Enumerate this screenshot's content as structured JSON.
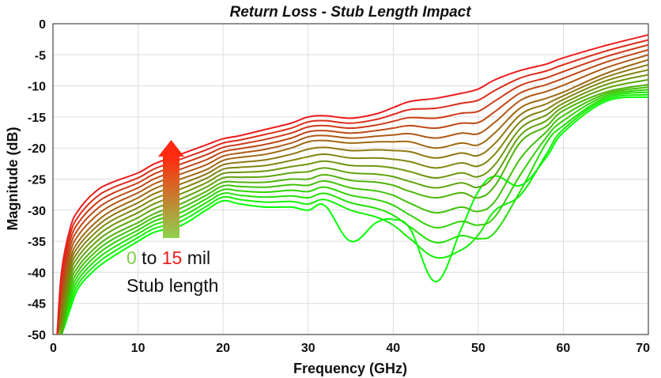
{
  "chart_data": {
    "type": "line",
    "title": "Return Loss - Stub Length Impact",
    "xlabel": "Frequency (GHz)",
    "ylabel": "Magnitude (dB)",
    "xlim": [
      0,
      70
    ],
    "ylim": [
      -50,
      0
    ],
    "xticks": [
      "0",
      "10",
      "20",
      "30",
      "40",
      "50",
      "60",
      "70"
    ],
    "yticks": [
      "0",
      "-5",
      "-10",
      "-15",
      "-20",
      "-25",
      "-30",
      "-35",
      "-40",
      "-45",
      "-50"
    ],
    "grid": true,
    "color_start": "#00ff00",
    "color_end": "#ee1c1c",
    "x": [
      0.5,
      1,
      2,
      3,
      5,
      7,
      10,
      12,
      15,
      18,
      20,
      22,
      25,
      28,
      30,
      32,
      35,
      38,
      40,
      42,
      45,
      48,
      50,
      52,
      55,
      58,
      60,
      65,
      70
    ],
    "series": [
      {
        "values": [
          -50,
          -40,
          -33,
          -30,
          -27,
          -25.5,
          -24,
          -22.5,
          -21,
          -19.5,
          -18.5,
          -18,
          -17,
          -16,
          -15,
          -14.8,
          -15.2,
          -14.5,
          -13.5,
          -12.5,
          -12,
          -11.2,
          -10.5,
          -9,
          -7.5,
          -6.5,
          -5.5,
          -3.5,
          -1.8
        ]
      },
      {
        "values": [
          -50,
          -41,
          -34,
          -31,
          -28,
          -26.4,
          -24.8,
          -23.3,
          -21.8,
          -20.3,
          -19.2,
          -18.7,
          -17.8,
          -16.8,
          -15.8,
          -15.6,
          -16,
          -15.4,
          -14.6,
          -13.8,
          -13.6,
          -12.8,
          -12.3,
          -10.7,
          -8.7,
          -7.6,
          -6.6,
          -4.4,
          -2.6
        ]
      },
      {
        "values": [
          -50,
          -42,
          -35,
          -32,
          -29,
          -27.3,
          -25.6,
          -24.1,
          -22.6,
          -21.1,
          -19.9,
          -19.4,
          -18.6,
          -17.6,
          -16.6,
          -16.4,
          -16.8,
          -16.3,
          -15.7,
          -15.1,
          -15.2,
          -14.4,
          -14.1,
          -12.4,
          -9.9,
          -8.7,
          -7.7,
          -5.3,
          -3.4
        ]
      },
      {
        "values": [
          -50,
          -43,
          -36,
          -33,
          -30,
          -28.2,
          -26.4,
          -24.9,
          -23.4,
          -21.9,
          -20.6,
          -20.1,
          -19.4,
          -18.4,
          -17.4,
          -17.2,
          -17.6,
          -17.2,
          -16.8,
          -16.4,
          -16.8,
          -16,
          -15.9,
          -14.1,
          -11.1,
          -9.8,
          -8.8,
          -6.2,
          -4.2
        ]
      },
      {
        "values": [
          -50,
          -44,
          -37,
          -34,
          -31,
          -29.1,
          -27.2,
          -25.7,
          -24.2,
          -22.7,
          -21.3,
          -20.8,
          -20.2,
          -19.2,
          -18.2,
          -18,
          -18.4,
          -18.1,
          -17.9,
          -17.7,
          -18.4,
          -17.6,
          -17.7,
          -15.8,
          -12.3,
          -10.9,
          -9.9,
          -7.1,
          -5
        ]
      },
      {
        "values": [
          -50,
          -45,
          -38,
          -35,
          -32,
          -30,
          -28,
          -26.5,
          -25,
          -23.5,
          -22,
          -21.5,
          -21,
          -20,
          -19,
          -18.8,
          -19.2,
          -19,
          -19,
          -19,
          -20,
          -19.2,
          -19.5,
          -17.5,
          -13.5,
          -12,
          -11,
          -8,
          -5.8
        ]
      },
      {
        "values": [
          -50,
          -46,
          -38.8,
          -35.8,
          -32.8,
          -30.8,
          -28.8,
          -27.3,
          -25.8,
          -24.2,
          -22.7,
          -22.3,
          -21.9,
          -21,
          -20.2,
          -19.9,
          -20.4,
          -20.3,
          -20.4,
          -20.6,
          -21.6,
          -20.8,
          -21.2,
          -19.2,
          -14.6,
          -12.9,
          -11.6,
          -8.6,
          -6.6
        ]
      },
      {
        "values": [
          -50,
          -47,
          -39.6,
          -36.6,
          -33.6,
          -31.6,
          -29.6,
          -28.1,
          -26.6,
          -24.9,
          -23.4,
          -23.1,
          -22.8,
          -22,
          -21.4,
          -21,
          -21.6,
          -21.6,
          -21.8,
          -22.2,
          -23.2,
          -22.4,
          -22.9,
          -20.9,
          -15.7,
          -13.8,
          -12.2,
          -9.2,
          -7.4
        ]
      },
      {
        "values": [
          -50,
          -48,
          -40.4,
          -37.4,
          -34.4,
          -32.4,
          -30.4,
          -28.9,
          -27.4,
          -25.6,
          -24.1,
          -23.9,
          -23.7,
          -23,
          -22.6,
          -22.1,
          -22.8,
          -22.9,
          -23.2,
          -23.8,
          -24.8,
          -24,
          -24.6,
          -22.6,
          -16.8,
          -14.7,
          -12.8,
          -9.8,
          -8.2
        ]
      },
      {
        "values": [
          -50,
          -49,
          -41.2,
          -38.2,
          -35.2,
          -33.2,
          -31.2,
          -29.7,
          -28.2,
          -26.3,
          -24.8,
          -24.7,
          -24.6,
          -24,
          -23.8,
          -23.2,
          -24,
          -24.2,
          -24.6,
          -25.4,
          -26.4,
          -25.6,
          -26.3,
          -24.3,
          -17.9,
          -15.6,
          -13.4,
          -10.4,
          -9
        ]
      },
      {
        "values": [
          -50,
          -50,
          -42,
          -39,
          -36,
          -34,
          -32,
          -30.5,
          -29,
          -27,
          -25.5,
          -25.5,
          -25.5,
          -25,
          -25,
          -24.3,
          -25.2,
          -25.5,
          -26,
          -27,
          -28,
          -27.2,
          -28,
          -26,
          -19,
          -16.5,
          -14,
          -11,
          -9.8
        ]
      },
      {
        "values": [
          -50,
          -50,
          -42.8,
          -39.7,
          -36.7,
          -34.7,
          -32.6,
          -31.1,
          -29.7,
          -27.6,
          -26.1,
          -26.2,
          -26.3,
          -25.9,
          -26,
          -25.3,
          -26.4,
          -26.9,
          -27.6,
          -28.9,
          -30.4,
          -29.5,
          -30.2,
          -28.5,
          -21.6,
          -17.4,
          -14.8,
          -11.3,
          -10.2
        ]
      },
      {
        "values": [
          -50,
          -50,
          -43.6,
          -40.4,
          -37.4,
          -35.4,
          -33.2,
          -31.7,
          -30.4,
          -28.2,
          -26.7,
          -26.9,
          -27.1,
          -26.8,
          -27,
          -26.3,
          -27.6,
          -28.3,
          -29.2,
          -30.8,
          -32.8,
          -31.8,
          -32.4,
          -31,
          -24.2,
          -18.3,
          -15.6,
          -11.6,
          -10.6
        ]
      },
      {
        "values": [
          -50,
          -50,
          -44.4,
          -41.1,
          -38.1,
          -36.1,
          -33.8,
          -32.3,
          -31.1,
          -28.8,
          -27.3,
          -27.6,
          -27.9,
          -27.7,
          -28,
          -27.3,
          -28.8,
          -29.7,
          -30.8,
          -32.7,
          -35.2,
          -34.1,
          -34.6,
          -33.5,
          -26.8,
          -19.2,
          -16.4,
          -11.9,
          -11
        ]
      },
      {
        "values": [
          -50,
          -50,
          -45.2,
          -41.8,
          -38.8,
          -36.8,
          -34.4,
          -32.9,
          -31.8,
          -29.4,
          -27.9,
          -28.3,
          -28.7,
          -28.6,
          -29,
          -28.3,
          -30,
          -31.1,
          -32.4,
          -34.6,
          -37.6,
          -36.4,
          -34,
          -30,
          -27.5,
          -21,
          -17,
          -12.2,
          -11.4
        ]
      },
      {
        "values": [
          -50,
          -50,
          -46,
          -42.5,
          -39.5,
          -37.5,
          -35,
          -33.5,
          -32.5,
          -30,
          -28.5,
          -29,
          -29.5,
          -29.5,
          -30,
          -29.3,
          -35,
          -32,
          -31.5,
          -33,
          -41.5,
          -33,
          -27,
          -24.5,
          -26,
          -21.5,
          -17.5,
          -12.5,
          -11.8
        ]
      }
    ],
    "annotation": {
      "start_value": "0",
      "to_text": " to ",
      "end_value": "15",
      "unit_text": " mil",
      "line2": "Stub length"
    }
  }
}
